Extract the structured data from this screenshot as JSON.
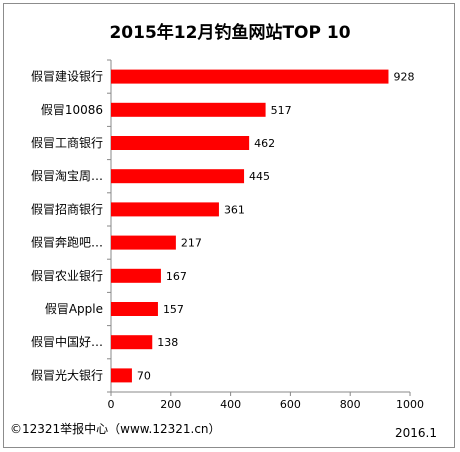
{
  "chart_data": {
    "type": "bar",
    "orientation": "horizontal",
    "title": "2015年12月钓鱼网站TOP 10",
    "categories": [
      "假冒建设银行",
      "假冒10086",
      "假冒工商银行",
      "假冒淘宝周…",
      "假冒招商银行",
      "假冒奔跑吧…",
      "假冒农业银行",
      "假冒Apple",
      "假冒中国好…",
      "假冒光大银行"
    ],
    "values": [
      928,
      517,
      462,
      445,
      361,
      217,
      167,
      157,
      138,
      70
    ],
    "xlim": [
      0,
      1000
    ],
    "xticks": [
      "0",
      "200",
      "400",
      "600",
      "800",
      "1000"
    ],
    "bar_color": "#ff0000",
    "grid": false,
    "legend": "none"
  },
  "footer": {
    "source": "©12321举报中心（www.12321.cn）",
    "date": "2016.1"
  }
}
